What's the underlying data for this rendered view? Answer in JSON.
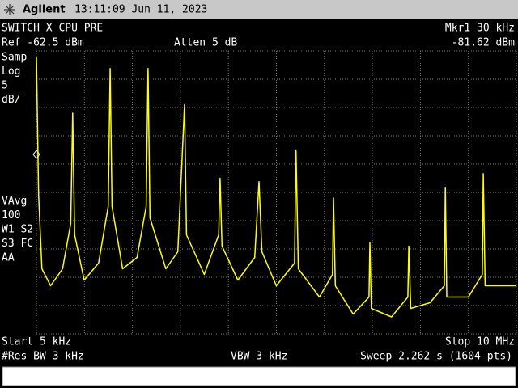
{
  "header": {
    "brand": "Agilent",
    "timestamp": "13:11:09  Jun 11, 2023"
  },
  "top_labels": {
    "title": "SWITCH X CPU PRE",
    "ref": "Ref -62.5 dBm",
    "atten": "Atten 5 dB",
    "marker": "Mkr1  30 kHz",
    "marker_value": "-81.62 dBm"
  },
  "left_labels": [
    "Samp",
    "Log",
    "5",
    "dB/"
  ],
  "left_labels_lower": [
    "VAvg",
    "100",
    "W1  S2",
    "S3  FC",
    "AA"
  ],
  "bottom_labels": {
    "start": "Start 5 kHz",
    "stop": "Stop 10 MHz",
    "rbw": "#Res BW 3 kHz",
    "vbw": "VBW 3 kHz",
    "sweep": "Sweep 2.262 s (1604 pts)"
  },
  "trace": {
    "color": "#ffff00",
    "xlim": [
      0.005,
      10
    ],
    "ylim": [
      -112.5,
      -62.5
    ],
    "x": [
      0.005,
      0.05,
      0.12,
      0.3,
      0.55,
      0.72,
      0.76,
      0.8,
      1.0,
      1.3,
      1.5,
      1.54,
      1.58,
      1.8,
      2.1,
      2.29,
      2.33,
      2.37,
      2.7,
      2.95,
      3.09,
      3.13,
      3.5,
      3.8,
      3.83,
      3.87,
      4.2,
      4.55,
      4.64,
      4.7,
      5.0,
      5.38,
      5.41,
      5.46,
      5.9,
      6.17,
      6.19,
      6.23,
      6.6,
      6.93,
      6.95,
      6.98,
      7.4,
      7.74,
      7.76,
      7.8,
      8.2,
      8.5,
      8.52,
      8.55,
      9.0,
      9.29,
      9.31,
      9.35,
      9.7,
      10
    ],
    "values": [
      -63.5,
      -88,
      -101,
      -104,
      -101,
      -93,
      -73.5,
      -95,
      -103,
      -100,
      -90,
      -65.6,
      -90,
      -101,
      -99,
      -90,
      -65.6,
      -92,
      -101,
      -98,
      -72,
      -95,
      -102,
      -95,
      -85,
      -97,
      -103,
      -99,
      -85.6,
      -98,
      -104,
      -100,
      -80,
      -101,
      -106,
      -102,
      -88.5,
      -104,
      -109,
      -106,
      -96.4,
      -108,
      -109.5,
      -106,
      -97,
      -108,
      -107,
      -104,
      -86.6,
      -106,
      -106,
      -102,
      -84.2,
      -104,
      -104,
      -104
    ]
  }
}
